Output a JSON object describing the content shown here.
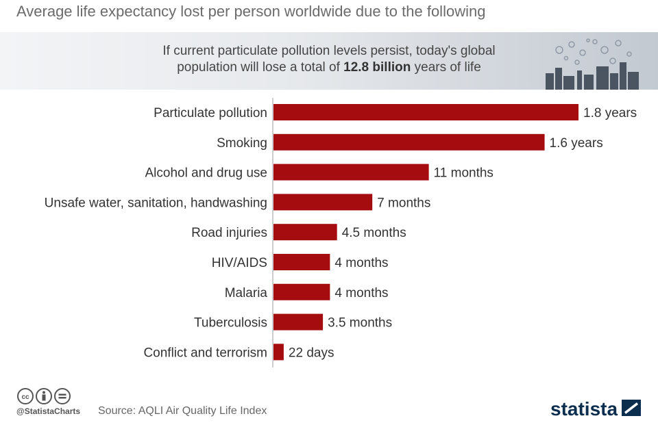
{
  "title": "Average life expectancy lost per person worldwide due to the following",
  "subtitle": {
    "line1": "If current particulate pollution levels persist, today's global",
    "line2_pre": "population will lose a total of ",
    "line2_bold": "12.8 billion",
    "line2_post": " years of life"
  },
  "footer": {
    "handle": "@StatistaCharts",
    "source": "Source: AQLI Air Quality Life Index",
    "logo_text": "statista",
    "icons": [
      "cc-icon",
      "attribution-icon",
      "no-derivatives-icon"
    ]
  },
  "colors": {
    "bar": "#a50c10",
    "banner_start": "#f3f4f6",
    "banner_end": "#c3c9d1",
    "logo": "#0b2e4f"
  },
  "chart_data": {
    "type": "bar",
    "orientation": "horizontal",
    "unit": "years",
    "categories": [
      "Particulate pollution",
      "Smoking",
      "Alcohol and drug use",
      "Unsafe water, sanitation, handwashing",
      "Road injuries",
      "HIV/AIDS",
      "Malaria",
      "Tuberculosis",
      "Conflict and terrorism"
    ],
    "values": [
      1.8,
      1.6,
      0.9167,
      0.5833,
      0.375,
      0.3333,
      0.3333,
      0.2917,
      0.0603
    ],
    "value_labels": [
      "1.8 years",
      "1.6 years",
      "11 months",
      "7 months",
      "4.5 months",
      "4 months",
      "4 months",
      "3.5 months",
      "22 days"
    ]
  }
}
